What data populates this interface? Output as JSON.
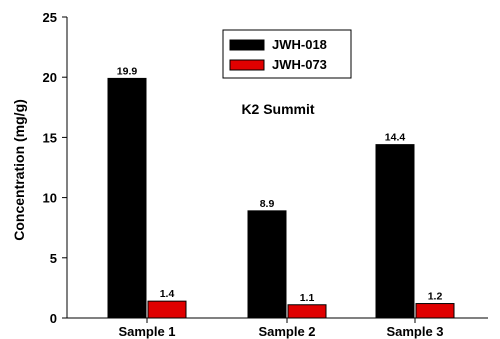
{
  "chart_data": {
    "type": "bar",
    "categories": [
      "Sample 1",
      "Sample 2",
      "Sample 3"
    ],
    "series": [
      {
        "name": "JWH-018",
        "values": [
          19.9,
          8.9,
          14.4
        ],
        "color": "#000000"
      },
      {
        "name": "JWH-073",
        "values": [
          1.4,
          1.1,
          1.2
        ],
        "color": "#e00000"
      }
    ],
    "data_labels": [
      [
        "19.9",
        "8.9",
        "14.4"
      ],
      [
        "1.4",
        "1.1",
        "1.2"
      ]
    ],
    "title": "",
    "annotation": "K2 Summit",
    "xlabel": "",
    "ylabel": "Concentration (mg/g)",
    "ylim": [
      0,
      25
    ],
    "yticks": [
      0,
      5,
      10,
      15,
      20,
      25
    ],
    "grid": false,
    "legend_position": "top-center"
  }
}
